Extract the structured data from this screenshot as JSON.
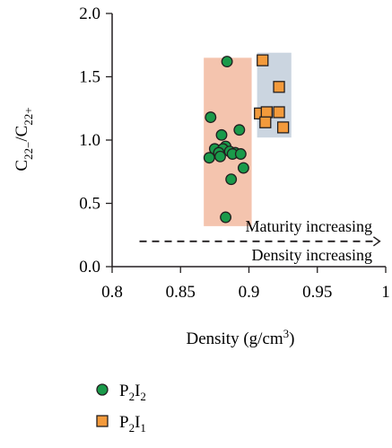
{
  "chart_data": {
    "type": "scatter",
    "xlabel": "Density (g/cm³)",
    "ylabel": "C22−/C22+",
    "xlim": [
      0.8,
      1.0
    ],
    "ylim": [
      0.0,
      2.0
    ],
    "x_ticks": [
      "0.8",
      "0.85",
      "0.9",
      "0.95",
      "1"
    ],
    "y_ticks": [
      "0.0",
      "0.5",
      "1.0",
      "1.5",
      "2.0"
    ],
    "grid": false,
    "legend_position": "bottom-left",
    "series": [
      {
        "name": "P2I2",
        "marker": "circle",
        "color": "#1a9a4a",
        "points": [
          [
            0.884,
            1.62
          ],
          [
            0.872,
            1.18
          ],
          [
            0.893,
            1.08
          ],
          [
            0.88,
            1.04
          ],
          [
            0.883,
            0.95
          ],
          [
            0.875,
            0.93
          ],
          [
            0.881,
            0.93
          ],
          [
            0.886,
            0.91
          ],
          [
            0.878,
            0.9
          ],
          [
            0.89,
            0.9
          ],
          [
            0.888,
            0.89
          ],
          [
            0.894,
            0.89
          ],
          [
            0.871,
            0.86
          ],
          [
            0.879,
            0.87
          ],
          [
            0.896,
            0.78
          ],
          [
            0.887,
            0.69
          ],
          [
            0.883,
            0.39
          ]
        ]
      },
      {
        "name": "P2I1",
        "marker": "square",
        "color": "#f39a3b",
        "points": [
          [
            0.91,
            1.63
          ],
          [
            0.922,
            1.42
          ],
          [
            0.908,
            1.21
          ],
          [
            0.913,
            1.22
          ],
          [
            0.922,
            1.22
          ],
          [
            0.912,
            1.14
          ],
          [
            0.925,
            1.1
          ]
        ]
      }
    ],
    "shaded_regions": [
      {
        "x": [
          0.867,
          0.902
        ],
        "y": [
          0.32,
          1.65
        ],
        "color": "#f4c4ae"
      },
      {
        "x": [
          0.906,
          0.931
        ],
        "y": [
          1.02,
          1.69
        ],
        "color": "#cbd5e0"
      }
    ],
    "annotations": [
      "Maturity increasing",
      "Density increasing"
    ],
    "arrow": {
      "x": [
        0.82,
        0.995
      ],
      "y": 0.2,
      "style": "dashed"
    }
  }
}
